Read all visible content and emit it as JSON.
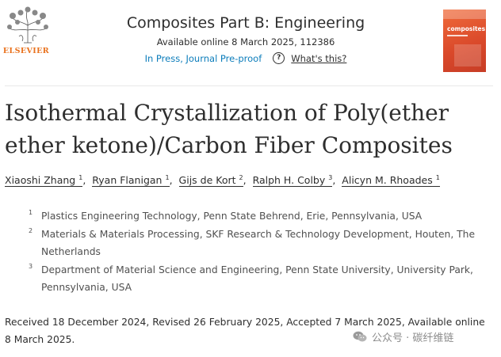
{
  "publisher": {
    "name": "ELSEVIER"
  },
  "journal": {
    "title": "Composites Part B: Engineering",
    "availability": "Available online 8 March 2025, 112386",
    "status": "In Press, Journal Pre-proof",
    "help_label": "What's this?",
    "cover_word": "composites"
  },
  "article": {
    "title": "Isothermal Crystallization of Poly(ether ether ketone)/Carbon Fiber Composites",
    "authors": [
      {
        "name": "Xiaoshi Zhang",
        "aff": "1"
      },
      {
        "name": "Ryan Flanigan",
        "aff": "1"
      },
      {
        "name": "Gijs de Kort",
        "aff": "2"
      },
      {
        "name": "Ralph H. Colby",
        "aff": "3"
      },
      {
        "name": "Alicyn M. Rhoades",
        "aff": "1"
      }
    ],
    "author_separator": ",",
    "affiliations": [
      {
        "num": "1",
        "text": "Plastics Engineering Technology, Penn State Behrend, Erie, Pennsylvania, USA"
      },
      {
        "num": "2",
        "text": "Materials & Materials Processing, SKF Research & Technology Development, Houten, The Netherlands"
      },
      {
        "num": "3",
        "text": "Department of Material Science and Engineering, Penn State University, University Park, Pennsylvania, USA"
      }
    ],
    "dates": "Received 18 December 2024, Revised 26 February 2025, Accepted 7 March 2025, Available online 8 March 2025."
  },
  "watermark": {
    "text": "公众号 · 碳纤维链"
  }
}
